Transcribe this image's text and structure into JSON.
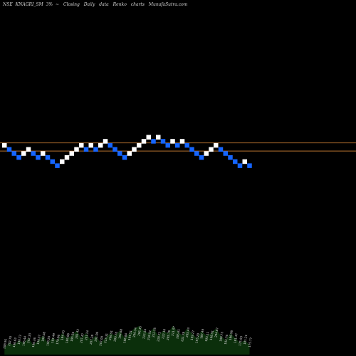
{
  "header": {
    "exchange": "NSE",
    "symbol": "KNAGRI_SM",
    "brick_label": "3%",
    "arrow": "~",
    "price_type": "Closing",
    "interval": "Daily",
    "data_word": "data",
    "chart_kind": "Renko",
    "charts_word": "charts",
    "site": "MunafaSutra.com"
  },
  "colors": {
    "background": "#000000",
    "up_brick": "#ffffff",
    "down_brick": "#1565ff",
    "reference_line": "#b8732f",
    "volume_fill": "#0b2f0b",
    "volume_label": "#e0e0e0"
  },
  "chart_data": {
    "type": "renko",
    "brick_size_percent": 3,
    "brick_unit_steps": 1,
    "bricks": [
      {
        "level": 3,
        "dir": "up"
      },
      {
        "level": 2,
        "dir": "down"
      },
      {
        "level": 1,
        "dir": "down"
      },
      {
        "level": 0,
        "dir": "down"
      },
      {
        "level": 1,
        "dir": "up"
      },
      {
        "level": 2,
        "dir": "up"
      },
      {
        "level": 1,
        "dir": "down"
      },
      {
        "level": 0,
        "dir": "down"
      },
      {
        "level": 1,
        "dir": "up"
      },
      {
        "level": 0,
        "dir": "down"
      },
      {
        "level": -1,
        "dir": "down"
      },
      {
        "level": -2,
        "dir": "down"
      },
      {
        "level": -1,
        "dir": "up"
      },
      {
        "level": 0,
        "dir": "up"
      },
      {
        "level": 1,
        "dir": "up"
      },
      {
        "level": 2,
        "dir": "up"
      },
      {
        "level": 3,
        "dir": "up"
      },
      {
        "level": 2,
        "dir": "down"
      },
      {
        "level": 3,
        "dir": "up"
      },
      {
        "level": 2,
        "dir": "down"
      },
      {
        "level": 3,
        "dir": "up"
      },
      {
        "level": 4,
        "dir": "up"
      },
      {
        "level": 3,
        "dir": "down"
      },
      {
        "level": 2,
        "dir": "down"
      },
      {
        "level": 1,
        "dir": "down"
      },
      {
        "level": 0,
        "dir": "down"
      },
      {
        "level": 1,
        "dir": "up"
      },
      {
        "level": 2,
        "dir": "up"
      },
      {
        "level": 3,
        "dir": "up"
      },
      {
        "level": 4,
        "dir": "up"
      },
      {
        "level": 5,
        "dir": "up"
      },
      {
        "level": 4,
        "dir": "down"
      },
      {
        "level": 5,
        "dir": "up"
      },
      {
        "level": 4,
        "dir": "down"
      },
      {
        "level": 3,
        "dir": "down"
      },
      {
        "level": 4,
        "dir": "up"
      },
      {
        "level": 3,
        "dir": "down"
      },
      {
        "level": 4,
        "dir": "up"
      },
      {
        "level": 3,
        "dir": "down"
      },
      {
        "level": 2,
        "dir": "down"
      },
      {
        "level": 1,
        "dir": "down"
      },
      {
        "level": 0,
        "dir": "down"
      },
      {
        "level": 1,
        "dir": "up"
      },
      {
        "level": 2,
        "dir": "up"
      },
      {
        "level": 3,
        "dir": "up"
      },
      {
        "level": 2,
        "dir": "down"
      },
      {
        "level": 1,
        "dir": "down"
      },
      {
        "level": 0,
        "dir": "down"
      },
      {
        "level": -1,
        "dir": "down"
      },
      {
        "level": -2,
        "dir": "down"
      },
      {
        "level": -1,
        "dir": "up"
      },
      {
        "level": -2,
        "dir": "down"
      }
    ],
    "reference_levels": [
      3.6,
      1.6
    ],
    "volume": [
      3,
      5,
      4,
      6,
      5,
      7,
      4,
      6,
      8,
      5,
      7,
      6,
      9,
      7,
      8,
      10,
      7,
      9,
      6,
      8,
      5,
      7,
      9,
      8,
      10,
      7,
      9,
      11,
      12,
      10,
      9,
      11,
      8,
      10,
      9,
      12,
      10,
      8,
      11,
      9,
      7,
      10,
      8,
      9,
      11,
      8,
      6,
      9,
      7,
      5,
      6,
      4
    ],
    "volume_labels": [
      "208.95",
      "202.70",
      "196.62",
      "190.72",
      "196.44",
      "202.33",
      "196.26",
      "190.37",
      "196.08",
      "190.20",
      "184.49",
      "178.96",
      "184.33",
      "189.86",
      "195.56",
      "201.42",
      "207.47",
      "201.24",
      "207.28",
      "201.06",
      "207.09",
      "213.31",
      "206.91",
      "200.70",
      "194.68",
      "188.84",
      "194.51",
      "200.34",
      "206.35",
      "212.54",
      "218.92",
      "212.35",
      "218.72",
      "212.16",
      "205.79",
      "211.97",
      "205.61",
      "211.78",
      "205.43",
      "199.27",
      "193.29",
      "187.49",
      "193.11",
      "198.91",
      "204.87",
      "198.73",
      "192.76",
      "186.98",
      "181.37",
      "175.93",
      "181.21",
      "175.77"
    ]
  }
}
